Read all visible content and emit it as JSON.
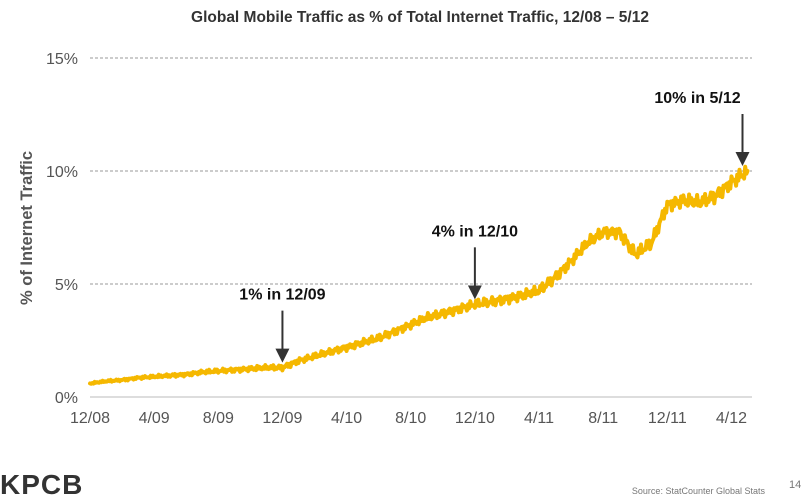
{
  "slide": {
    "logo": "KPCB",
    "source": "Source: StatCounter Global Stats",
    "page_number": "14"
  },
  "chart_data": {
    "type": "line",
    "title": "Global Mobile Traffic as % of Total Internet Traffic, 12/08 – 5/12",
    "xlabel": "",
    "ylabel": "% of Internet Traffic",
    "x_tick_labels": [
      "12/08",
      "4/09",
      "8/09",
      "12/09",
      "4/10",
      "8/10",
      "12/10",
      "4/11",
      "8/11",
      "12/11",
      "4/12"
    ],
    "y_tick_labels": [
      "0%",
      "5%",
      "10%",
      "15%"
    ],
    "ylim": [
      0,
      15
    ],
    "grid": "horizontal dashed",
    "line_color": "#F5B800",
    "series": [
      {
        "x": [
          "12/08",
          "1/09",
          "2/09",
          "3/09",
          "4/09",
          "5/09",
          "6/09",
          "7/09",
          "8/09",
          "9/09",
          "10/09",
          "11/09",
          "12/09",
          "1/10",
          "2/10",
          "3/10",
          "4/10",
          "5/10",
          "6/10",
          "7/10",
          "8/10",
          "9/10",
          "10/10",
          "11/10",
          "12/10",
          "1/11",
          "2/11",
          "3/11",
          "4/11",
          "5/11",
          "6/11",
          "7/11",
          "8/11",
          "9/11",
          "10/11",
          "11/11",
          "12/11",
          "1/12",
          "2/12",
          "3/12",
          "4/12",
          "5/12"
        ],
        "values": [
          0.6,
          0.7,
          0.75,
          0.85,
          0.9,
          0.95,
          1.0,
          1.1,
          1.15,
          1.2,
          1.25,
          1.3,
          1.3,
          1.6,
          1.8,
          2.0,
          2.2,
          2.4,
          2.6,
          2.9,
          3.2,
          3.5,
          3.7,
          3.9,
          4.1,
          4.2,
          4.35,
          4.5,
          4.7,
          5.3,
          6.0,
          6.8,
          7.3,
          7.3,
          6.3,
          6.8,
          8.5,
          8.7,
          8.6,
          8.9,
          9.5,
          10.0
        ]
      }
    ],
    "annotations": [
      {
        "text": "1% in 12/09",
        "x": "12/09"
      },
      {
        "text": "4% in 12/10",
        "x": "12/10"
      },
      {
        "text": "10% in 5/12",
        "x": "5/12"
      }
    ]
  }
}
